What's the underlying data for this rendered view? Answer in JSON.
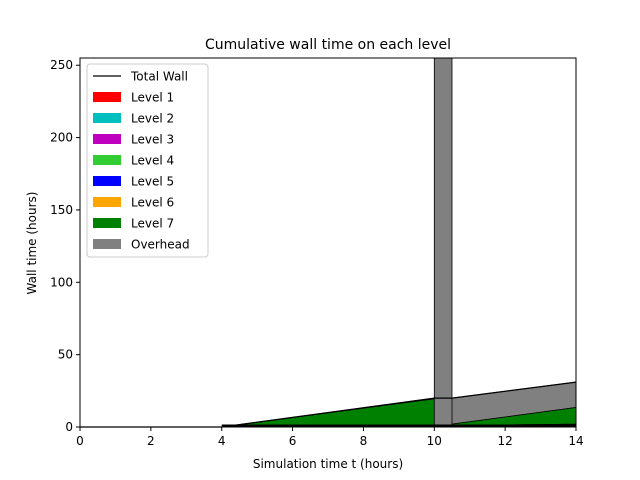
{
  "chart_data": {
    "type": "area",
    "title": "Cumulative wall time on each level",
    "xlabel": "Simulation time t (hours)",
    "ylabel": "Wall time (hours)",
    "xlim": [
      0,
      14
    ],
    "ylim": [
      0,
      255
    ],
    "xticks": [
      0,
      2,
      4,
      6,
      8,
      10,
      12,
      14
    ],
    "xtick_labels": [
      "0",
      "2",
      "4",
      "6",
      "8",
      "10",
      "12",
      "14"
    ],
    "yticks": [
      0,
      50,
      100,
      150,
      200,
      250
    ],
    "ytick_labels": [
      "0",
      "50",
      "100",
      "150",
      "200",
      "250"
    ],
    "grid": false,
    "legend_position": "top-left",
    "legend": [
      {
        "label": "Total Wall",
        "kind": "line",
        "color": "#000000"
      },
      {
        "label": "Level 1",
        "kind": "patch",
        "color": "#ff0000"
      },
      {
        "label": "Level 2",
        "kind": "patch",
        "color": "#00bfbf"
      },
      {
        "label": "Level 3",
        "kind": "patch",
        "color": "#bf00bf"
      },
      {
        "label": "Level 4",
        "kind": "patch",
        "color": "#32cd32"
      },
      {
        "label": "Level 5",
        "kind": "patch",
        "color": "#0000ff"
      },
      {
        "label": "Level 6",
        "kind": "patch",
        "color": "#ffa500"
      },
      {
        "label": "Level 7",
        "kind": "patch",
        "color": "#008000"
      },
      {
        "label": "Overhead",
        "kind": "patch",
        "color": "#808080"
      }
    ],
    "series": [
      {
        "name": "Level 1",
        "color": "#ff0000",
        "points": [
          [
            0,
            0
          ],
          [
            4,
            0
          ],
          [
            10,
            0.05
          ],
          [
            10.5,
            0.05
          ],
          [
            14,
            0.1
          ]
        ]
      },
      {
        "name": "Level 2",
        "color": "#00bfbf",
        "points": [
          [
            0,
            0
          ],
          [
            4,
            0
          ],
          [
            10,
            0.1
          ],
          [
            10.5,
            0.1
          ],
          [
            14,
            0.2
          ]
        ]
      },
      {
        "name": "Level 3",
        "color": "#bf00bf",
        "points": [
          [
            0,
            0
          ],
          [
            4,
            0
          ],
          [
            10,
            0.2
          ],
          [
            10.5,
            0.2
          ],
          [
            14,
            0.4
          ]
        ]
      },
      {
        "name": "Level 4",
        "color": "#32cd32",
        "points": [
          [
            0,
            0
          ],
          [
            4,
            0
          ],
          [
            10,
            0.3
          ],
          [
            10.5,
            0.4
          ],
          [
            14,
            0.8
          ]
        ]
      },
      {
        "name": "Level 5",
        "color": "#0000ff",
        "points": [
          [
            0,
            0
          ],
          [
            4,
            0
          ],
          [
            10,
            0.5
          ],
          [
            10.5,
            0.6
          ],
          [
            14,
            1.2
          ]
        ]
      },
      {
        "name": "Level 6",
        "color": "#ffa500",
        "points": [
          [
            0,
            0
          ],
          [
            4,
            0
          ],
          [
            10,
            0.8
          ],
          [
            10.5,
            1.0
          ],
          [
            14,
            2.0
          ]
        ]
      },
      {
        "name": "Level 7",
        "color": "#008000",
        "points": [
          [
            0,
            0
          ],
          [
            4,
            0
          ],
          [
            10,
            19.5
          ],
          [
            10.5,
            2.0
          ],
          [
            14,
            13.5
          ]
        ]
      },
      {
        "name": "Overhead",
        "color": "#808080",
        "points": [
          [
            0,
            0
          ],
          [
            4,
            0
          ],
          [
            10,
            20
          ],
          [
            10.5,
            20
          ],
          [
            14,
            31
          ]
        ]
      }
    ],
    "total_wall": {
      "name": "Total Wall",
      "color": "#000000",
      "points": [
        [
          0,
          0
        ],
        [
          4,
          0
        ],
        [
          10,
          20
        ],
        [
          10.5,
          20
        ],
        [
          14,
          31
        ]
      ]
    },
    "overhead_spike": {
      "x": [
        10,
        10.5
      ],
      "y_top": 255
    }
  }
}
